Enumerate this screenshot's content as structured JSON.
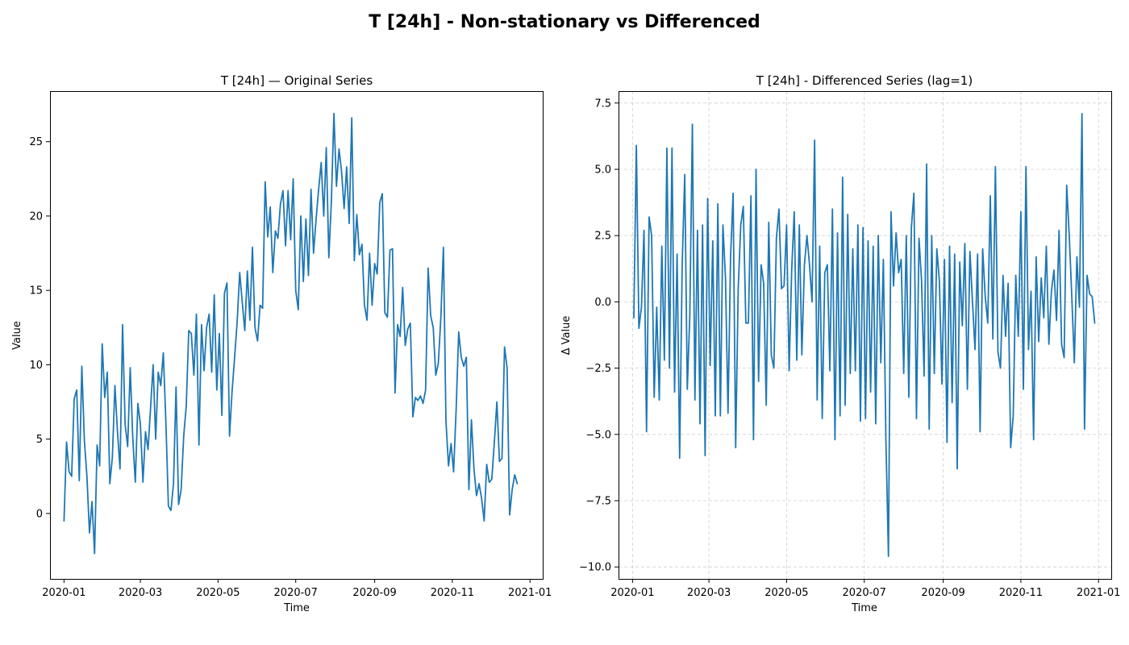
{
  "figure": {
    "title": "T [24h] - Non-stationary vs Differenced"
  },
  "colors": {
    "line": "#1f77b4",
    "axes": "#000000",
    "grid": "#b0b0b0"
  },
  "chart_data": [
    {
      "type": "line",
      "title": "T [24h] — Original Series",
      "xlabel": "Time",
      "ylabel": "Value",
      "grid": false,
      "x_range": [
        "2019-12-21",
        "2021-01-11"
      ],
      "ylim": [
        -4.4,
        28.4
      ],
      "x_ticks": [
        "2020-01",
        "2020-03",
        "2020-05",
        "2020-07",
        "2020-09",
        "2020-11",
        "2021-01"
      ],
      "y_ticks": [
        0,
        5,
        10,
        15,
        20,
        25
      ],
      "y_tick_labels": [
        "0",
        "5",
        "10",
        "15",
        "20",
        "25"
      ],
      "series": [
        {
          "x_start": "2020-01-01",
          "x_step_days": 2,
          "values": [
            -0.5,
            4.8,
            2.8,
            2.5,
            7.7,
            8.3,
            2.2,
            9.9,
            4.9,
            2.5,
            -1.3,
            0.8,
            -2.7,
            4.6,
            3.2,
            11.4,
            7.8,
            9.5,
            2.0,
            3.8,
            8.6,
            5.5,
            3.0,
            12.7,
            6.0,
            4.5,
            9.8,
            5.1,
            2.1,
            7.4,
            6.0,
            2.1,
            5.5,
            4.3,
            7.1,
            10.0,
            5.0,
            9.5,
            8.6,
            10.8,
            6.2,
            0.5,
            0.2,
            2.0,
            8.5,
            0.6,
            1.6,
            5.2,
            7.2,
            12.3,
            12.1,
            9.3,
            13.4,
            4.6,
            12.7,
            9.6,
            12.5,
            13.4,
            9.5,
            14.7,
            8.3,
            12.1,
            6.6,
            14.8,
            15.5,
            5.2,
            8.2,
            10.5,
            12.9,
            16.2,
            14.2,
            12.3,
            16.3,
            13.0,
            17.9,
            12.5,
            11.6,
            14.0,
            13.8,
            22.3,
            18.6,
            20.6,
            16.2,
            19.0,
            18.5,
            20.8,
            21.7,
            18.0,
            21.7,
            18.4,
            22.5,
            15.0,
            13.7,
            20.0,
            15.6,
            19.8,
            16.0,
            21.8,
            17.5,
            19.8,
            21.8,
            23.6,
            20.0,
            24.6,
            17.2,
            21.0,
            26.9,
            22.0,
            24.5,
            23.0,
            20.5,
            23.3,
            19.5,
            26.6,
            17.0,
            20.1,
            17.4,
            18.1,
            14.0,
            13.0,
            17.5,
            14.0,
            16.8,
            16.1,
            20.9,
            21.5,
            13.5,
            13.2,
            17.7,
            17.8,
            8.1,
            12.7,
            11.9,
            15.2,
            11.3,
            12.4,
            12.8,
            6.5,
            7.8,
            7.6,
            7.9,
            7.4,
            8.3,
            16.5,
            13.3,
            12.5,
            9.3,
            10.1,
            13.2,
            17.9,
            6.2,
            3.2,
            4.7,
            2.8,
            7.0,
            12.2,
            10.5,
            9.9,
            10.5,
            1.6,
            6.3,
            3.0,
            1.2,
            2.0,
            1.0,
            -0.5,
            3.3,
            2.1,
            2.3,
            4.8,
            7.5,
            3.5,
            3.7,
            11.2,
            9.8,
            -0.1,
            1.6,
            2.6,
            2.0
          ]
        }
      ]
    },
    {
      "type": "line",
      "title": "T [24h] - Differenced Series (lag=1)",
      "xlabel": "Time",
      "ylabel": "Δ Value",
      "grid": true,
      "x_range": [
        "2019-12-21",
        "2021-01-11"
      ],
      "ylim": [
        -10.45,
        7.95
      ],
      "x_ticks": [
        "2020-01",
        "2020-03",
        "2020-05",
        "2020-07",
        "2020-09",
        "2020-11",
        "2021-01"
      ],
      "y_ticks": [
        -10,
        -7.5,
        -5,
        -2.5,
        0,
        2.5,
        5,
        7.5
      ],
      "y_tick_labels": [
        "−10.0",
        "−7.5",
        "−5.0",
        "−2.5",
        "0.0",
        "2.5",
        "5.0",
        "7.5"
      ],
      "series": [
        {
          "x_start": "2020-01-02",
          "x_step_days": 2,
          "values": [
            -0.6,
            5.9,
            -1.0,
            -0.2,
            2.7,
            -4.9,
            3.2,
            2.5,
            -3.6,
            -0.2,
            -3.7,
            2.1,
            -2.2,
            5.8,
            -2.5,
            5.8,
            -3.4,
            1.8,
            -5.9,
            1.4,
            4.8,
            -3.3,
            -0.5,
            6.7,
            -3.7,
            2.7,
            -4.6,
            2.9,
            -5.8,
            3.9,
            -2.4,
            2.3,
            -4.3,
            3.7,
            -4.3,
            2.9,
            0.9,
            -4.2,
            1.7,
            4.1,
            -5.5,
            0.5,
            2.9,
            3.6,
            -0.8,
            -0.8,
            4.0,
            -5.2,
            5.0,
            -3.0,
            1.4,
            0.7,
            -3.9,
            3.0,
            -2.0,
            -2.5,
            2.4,
            3.5,
            0.5,
            0.6,
            2.9,
            -2.6,
            1.2,
            3.4,
            -2.2,
            2.9,
            -2.0,
            1.4,
            2.5,
            1.4,
            0.0,
            6.1,
            -3.7,
            2.1,
            -4.4,
            1.1,
            1.4,
            -2.6,
            3.5,
            -5.2,
            2.6,
            -4.3,
            4.7,
            -3.9,
            3.3,
            -2.7,
            2.0,
            -2.6,
            2.9,
            -4.5,
            2.8,
            -4.4,
            2.3,
            -3.4,
            2.1,
            -4.6,
            2.5,
            -2.3,
            1.6,
            -5.2,
            -9.6,
            3.4,
            0.6,
            2.6,
            1.1,
            1.6,
            -2.7,
            2.5,
            -3.6,
            2.8,
            4.1,
            -4.4,
            2.4,
            0.8,
            -2.8,
            5.2,
            -4.8,
            2.5,
            -2.7,
            2.0,
            0.8,
            -3.1,
            1.6,
            -5.3,
            2.1,
            -3.8,
            1.8,
            -6.3,
            1.5,
            -0.9,
            2.2,
            -3.3,
            1.9,
            0.0,
            -1.8,
            1.8,
            -4.9,
            2.0,
            0.2,
            -0.8,
            4.0,
            -1.4,
            5.1,
            -1.9,
            -2.5,
            1.0,
            -1.3,
            0.7,
            -5.5,
            -4.3,
            1.0,
            -1.3,
            3.4,
            -3.3,
            5.1,
            -1.8,
            0.4,
            -5.2,
            1.7,
            -1.5,
            0.9,
            -0.6,
            2.1,
            -1.6,
            0.4,
            1.2,
            -0.7,
            2.7,
            -1.6,
            -2.1,
            4.4,
            2.5,
            0.2,
            -2.3,
            1.7,
            -0.2,
            7.1,
            -4.8,
            1.0,
            0.3,
            0.2,
            -0.8
          ]
        }
      ]
    }
  ]
}
